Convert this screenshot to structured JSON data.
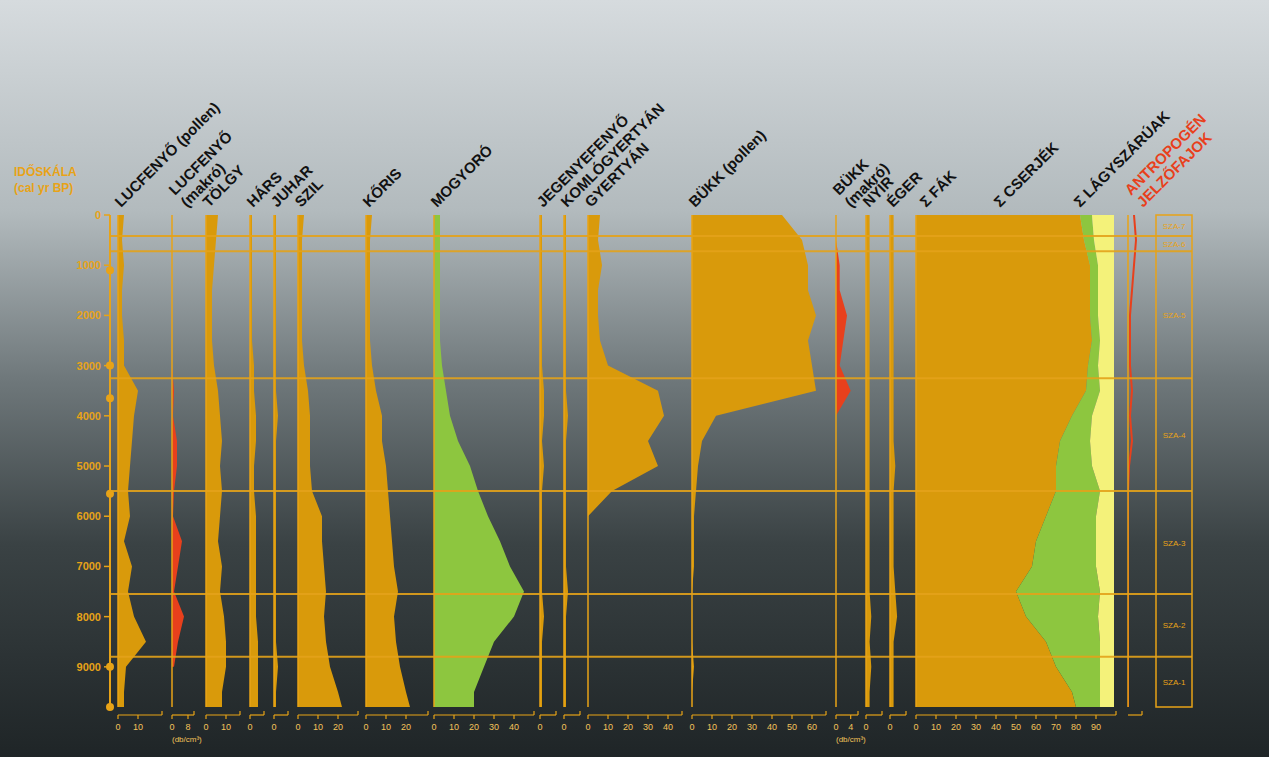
{
  "chart_data": {
    "type": "area",
    "ylabel": [
      "IDŐSKÁLA",
      "(cal yr BP)"
    ],
    "ylim": [
      0,
      9800
    ],
    "yticks": [
      0,
      1000,
      2000,
      3000,
      4000,
      5000,
      6000,
      7000,
      8000,
      9000
    ],
    "y": [
      0,
      500,
      1000,
      1500,
      2000,
      2500,
      3000,
      3500,
      4000,
      4500,
      5000,
      5500,
      6000,
      6500,
      7000,
      7500,
      8000,
      8500,
      9000,
      9500,
      9800
    ],
    "dates": [
      1100,
      3000,
      3650,
      5550,
      9000,
      9800
    ],
    "panels": [
      {
        "xlim": [
          0,
          22
        ],
        "xticks": [
          0,
          10
        ],
        "series": [
          {
            "name": "LUCFENYŐ (pollen)",
            "color": "#d99a0b",
            "values": [
              3,
              2,
              3,
              2,
              2,
              3,
              3,
              10,
              8,
              7,
              6,
              5,
              6,
              3,
              7,
              5,
              8,
              14,
              4,
              3,
              3
            ]
          }
        ]
      },
      {
        "xlim": [
          0,
          11
        ],
        "xticks": [
          0,
          8
        ],
        "xlabel": "(db/cm³)",
        "series": [
          {
            "name": "LUCFENYŐ (makró)",
            "color": "#e8401c",
            "values": [
              0,
              0,
              0,
              0,
              0,
              0,
              0,
              1,
              0.5,
              2.5,
              2.5,
              1,
              0.5,
              5,
              3,
              1,
              6,
              3,
              1,
              null,
              null
            ]
          }
        ]
      },
      {
        "xlim": [
          0,
          17
        ],
        "xticks": [
          0,
          10
        ],
        "series": [
          {
            "name": "TÖLGY",
            "color": "#d99a0b",
            "values": [
              6,
              5,
              4,
              3,
              3,
              3,
              4,
              6,
              7,
              8,
              7,
              8,
              7,
              6,
              8,
              7,
              9,
              10,
              10,
              8,
              8
            ]
          }
        ]
      },
      {
        "xlim": [
          0,
          7
        ],
        "xticks": [
          0
        ],
        "series": [
          {
            "name": "HÁRS",
            "color": "#d99a0b",
            "values": [
              1,
              1,
              1,
              1,
              1,
              1,
              2,
              2,
              3,
              3,
              2,
              2,
              3,
              3,
              3,
              3,
              3,
              4,
              4,
              4,
              4
            ]
          }
        ]
      },
      {
        "xlim": [
          0,
          7
        ],
        "xticks": [
          0
        ],
        "series": [
          {
            "name": "JUHAR",
            "color": "#d99a0b",
            "values": [
              1,
              1,
              1,
              1,
              1,
              1,
              1,
              1,
              2,
              1,
              1,
              1,
              1,
              1,
              1,
              1,
              1,
              1,
              2,
              1,
              1
            ]
          }
        ]
      },
      {
        "xlim": [
          0,
          30
        ],
        "xticks": [
          0,
          10,
          20
        ],
        "series": [
          {
            "name": "SZIL",
            "color": "#d99a0b",
            "values": [
              3,
              2,
              2,
              2,
              2,
              2,
              3,
              5,
              6,
              6,
              6,
              7,
              12,
              12,
              13,
              14,
              13,
              14,
              16,
              20,
              22
            ]
          }
        ]
      },
      {
        "xlim": [
          0,
          31
        ],
        "xticks": [
          0,
          10,
          20
        ],
        "series": [
          {
            "name": "KŐRIS",
            "color": "#d99a0b",
            "values": [
              3,
              2,
              2,
              2,
              2,
              2,
              3,
              5,
              8,
              8,
              10,
              11,
              12,
              13,
              14,
              16,
              14,
              15,
              17,
              20,
              22
            ]
          }
        ]
      },
      {
        "xlim": [
          0,
          50
        ],
        "xticks": [
          0,
          10,
          20,
          30,
          40
        ],
        "series": [
          {
            "name": "MOGYORÓ",
            "color": "#8dc63f",
            "values": [
              3,
              3,
              3,
              3,
              3,
              3,
              4,
              6,
              8,
              12,
              18,
              22,
              27,
              33,
              38,
              45,
              40,
              30,
              25,
              20,
              20
            ]
          }
        ]
      },
      {
        "xlim": [
          0,
          8
        ],
        "xticks": [
          0
        ],
        "series": [
          {
            "name": "JEGENYEFENYŐ",
            "color": "#d99a0b",
            "values": [
              1,
              1,
              1,
              1,
              1,
              1,
              1,
              2,
              2,
              1,
              2,
              1,
              1,
              1,
              1,
              1,
              2,
              1,
              1,
              1,
              1
            ]
          }
        ]
      },
      {
        "xlim": [
          0,
          8
        ],
        "xticks": [
          0
        ],
        "series": [
          {
            "name": "KOMLÓGYERTYÁN",
            "color": "#d99a0b",
            "values": [
              1,
              1,
              1,
              1,
              1,
              1,
              1,
              1,
              2,
              1,
              1,
              1,
              1,
              1,
              1,
              2,
              1,
              1,
              1,
              1,
              1
            ]
          }
        ]
      },
      {
        "xlim": [
          0,
          47
        ],
        "xticks": [
          0,
          10,
          20,
          30,
          40
        ],
        "series": [
          {
            "name": "GYERTYÁN",
            "color": "#d99a0b",
            "values": [
              6,
              5,
              7,
              5,
              5,
              6,
              10,
              35,
              38,
              30,
              35,
              12,
              0,
              0,
              0,
              0,
              0,
              0,
              0,
              0,
              0
            ]
          }
        ]
      },
      {
        "xlim": [
          0,
          67
        ],
        "xticks": [
          0,
          10,
          20,
          30,
          40,
          50,
          60
        ],
        "series": [
          {
            "name": "BÜKK (pollen)",
            "color": "#d99a0b",
            "values": [
              45,
              55,
              58,
              58,
              62,
              58,
              60,
              62,
              12,
              5,
              3,
              2,
              1,
              1,
              1,
              0,
              0,
              0,
              1,
              0,
              0
            ]
          }
        ]
      },
      {
        "xlim": [
          0,
          6
        ],
        "xticks": [
          0,
          4
        ],
        "xlabel": "(db/cm³)",
        "series": [
          {
            "name": "BÜKK (makró)",
            "color": "#e8401c",
            "values": [
              0,
              0,
              1,
              1,
              3,
              2,
              1,
              4,
              0,
              0,
              0,
              0,
              0,
              0,
              0,
              0,
              0,
              0,
              0,
              0,
              0
            ]
          }
        ]
      },
      {
        "xlim": [
          0,
          9
        ],
        "xticks": [
          0
        ],
        "series": [
          {
            "name": "NYÍR",
            "color": "#d99a0b",
            "values": [
              2,
              2,
              2,
              2,
              2,
              2,
              2,
              2,
              2,
              2,
              2,
              2,
              2,
              2,
              2,
              2,
              3,
              2,
              3,
              2,
              2
            ]
          }
        ]
      },
      {
        "xlim": [
          0,
          9
        ],
        "xticks": [
          0
        ],
        "series": [
          {
            "name": "ÉGER",
            "color": "#d99a0b",
            "values": [
              2,
              2,
              2,
              2,
              2,
              2,
              2,
              2,
              2,
              2,
              3,
              2,
              2,
              2,
              2,
              3,
              4,
              2,
              2,
              2,
              2
            ]
          }
        ]
      },
      {
        "xlim": [
          0,
          100
        ],
        "xticks": [
          0,
          10,
          20,
          30,
          40,
          50,
          60,
          70,
          80,
          90
        ],
        "stacked": true,
        "series": [
          {
            "name": "Σ FÁK",
            "color": "#d99a0b",
            "values": [
              82,
              84,
              87,
              87,
              87,
              88,
              86,
              85,
              78,
              72,
              70,
              70,
              65,
              60,
              58,
              50,
              55,
              65,
              70,
              78,
              80
            ]
          },
          {
            "name": "Σ CSERJÉK",
            "color": "#8dc63f",
            "values": [
              6,
              5,
              4,
              4,
              4,
              4,
              5,
              7,
              10,
              15,
              18,
              22,
              25,
              30,
              32,
              42,
              36,
              27,
              22,
              14,
              12
            ]
          },
          {
            "name": "Σ LÁGYSZÁRÚAK",
            "color": "#f4f27a",
            "values": [
              11,
              10,
              8,
              8,
              8,
              7,
              8,
              7,
              11,
              12,
              11,
              7,
              9,
              9,
              9,
              7,
              8,
              7,
              7,
              7,
              7
            ]
          }
        ]
      },
      {
        "xlim": [
          0,
          7
        ],
        "series": [
          {
            "name": "ANTROPOGÉN JELZŐFAJOK",
            "type": "line",
            "color": "#e8401c",
            "values": [
              3,
              4,
              3,
              2,
              1,
              1,
              1,
              2,
              1,
              2,
              0.5,
              0,
              0,
              0,
              0,
              0,
              0,
              0,
              0,
              0,
              0
            ]
          }
        ]
      }
    ],
    "zones": [
      {
        "label": "SZA-7",
        "from": 0,
        "to": 420
      },
      {
        "label": "SZA-6",
        "from": 420,
        "to": 720
      },
      {
        "label": "SZA-5",
        "from": 720,
        "to": 3250
      },
      {
        "label": "SZA-4",
        "from": 3250,
        "to": 5500
      },
      {
        "label": "SZA-3",
        "from": 5500,
        "to": 7550
      },
      {
        "label": "SZA-2",
        "from": 7550,
        "to": 8800
      },
      {
        "label": "SZA-1",
        "from": 8800,
        "to": 9800
      }
    ]
  }
}
